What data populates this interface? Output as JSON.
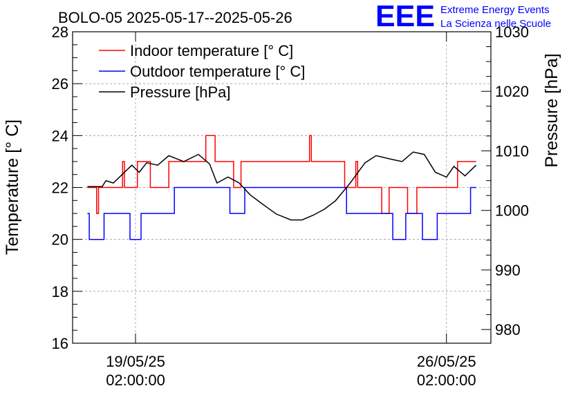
{
  "header": {
    "title": "BOLO-05 2025-05-17--2025-05-26",
    "logo_text": "EEE",
    "logo_line1": "Extreme Energy Events",
    "logo_line2": "La Scienza nelle Scuole"
  },
  "colors": {
    "indoor": "#ff0000",
    "outdoor": "#0000ff",
    "pressure": "#000000",
    "logo": "#0000ff",
    "grid": "#999999"
  },
  "chart_data": {
    "type": "line",
    "title": "BOLO-05 2025-05-17--2025-05-26",
    "ylabel": "Temperature [° C]",
    "y2label": "Pressure [hPa]",
    "ylim": [
      16,
      28
    ],
    "y2lim": [
      977.7,
      1030
    ],
    "xlim": [
      "2025-05-17T16:00:00",
      "2025-05-27T02:00:00"
    ],
    "grid": true,
    "legend_position": "top-left",
    "y_ticks": [
      16,
      18,
      20,
      22,
      24,
      26,
      28
    ],
    "y_tick_labels": [
      "16",
      "18",
      "20",
      "22",
      "24",
      "26",
      "28"
    ],
    "y2_ticks": [
      980,
      990,
      1000,
      1010,
      1020,
      1030
    ],
    "y2_tick_labels": [
      "980",
      "990",
      "1000",
      "1010",
      "1020",
      "1030"
    ],
    "x_ticks": [
      {
        "value": "2025-05-19T02:00:00",
        "date": "19/05/25",
        "time": "02:00:00"
      },
      {
        "value": "2025-05-26T02:00:00",
        "date": "26/05/25",
        "time": "02:00:00"
      }
    ],
    "series": [
      {
        "name": "Indoor temperature [° C]",
        "axis": "left",
        "points": [
          [
            "2025-05-18T00:00",
            22
          ],
          [
            "2025-05-18T04:00",
            22
          ],
          [
            "2025-05-18T05:00",
            21
          ],
          [
            "2025-05-18T06:00",
            22
          ],
          [
            "2025-05-18T18:00",
            22
          ],
          [
            "2025-05-18T19:00",
            23
          ],
          [
            "2025-05-18T20:00",
            22
          ],
          [
            "2025-05-19T02:00",
            22
          ],
          [
            "2025-05-19T03:00",
            23
          ],
          [
            "2025-05-19T09:00",
            23
          ],
          [
            "2025-05-19T10:00",
            22
          ],
          [
            "2025-05-19T19:00",
            22
          ],
          [
            "2025-05-19T20:00",
            23
          ],
          [
            "2025-05-20T15:00",
            23
          ],
          [
            "2025-05-20T16:00",
            24
          ],
          [
            "2025-05-20T20:00",
            24
          ],
          [
            "2025-05-20T21:00",
            23
          ],
          [
            "2025-05-21T06:00",
            23
          ],
          [
            "2025-05-21T07:00",
            22
          ],
          [
            "2025-05-21T10:00",
            22
          ],
          [
            "2025-05-21T11:00",
            23
          ],
          [
            "2025-05-22T23:00",
            23
          ],
          [
            "2025-05-23T00:00",
            24
          ],
          [
            "2025-05-23T01:00",
            23
          ],
          [
            "2025-05-23T18:00",
            23
          ],
          [
            "2025-05-23T19:00",
            22
          ],
          [
            "2025-05-24T00:00",
            22
          ],
          [
            "2025-05-24T01:00",
            23
          ],
          [
            "2025-05-24T02:00",
            22
          ],
          [
            "2025-05-24T14:00",
            22
          ],
          [
            "2025-05-24T15:00",
            21
          ],
          [
            "2025-05-24T18:00",
            21
          ],
          [
            "2025-05-24T19:00",
            22
          ],
          [
            "2025-05-25T04:00",
            22
          ],
          [
            "2025-05-25T05:00",
            21
          ],
          [
            "2025-05-25T09:00",
            21
          ],
          [
            "2025-05-25T10:00",
            22
          ],
          [
            "2025-05-26T07:00",
            22
          ],
          [
            "2025-05-26T08:00",
            23
          ],
          [
            "2025-05-26T18:00",
            23
          ]
        ]
      },
      {
        "name": "Outdoor temperature [° C]",
        "axis": "left",
        "points": [
          [
            "2025-05-18T00:00",
            21
          ],
          [
            "2025-05-18T01:00",
            20
          ],
          [
            "2025-05-18T08:00",
            20
          ],
          [
            "2025-05-18T09:00",
            21
          ],
          [
            "2025-05-18T22:00",
            21
          ],
          [
            "2025-05-18T23:00",
            20
          ],
          [
            "2025-05-19T04:00",
            20
          ],
          [
            "2025-05-19T05:00",
            21
          ],
          [
            "2025-05-19T22:00",
            21
          ],
          [
            "2025-05-19T23:00",
            22
          ],
          [
            "2025-05-21T04:00",
            22
          ],
          [
            "2025-05-21T05:00",
            21
          ],
          [
            "2025-05-21T12:00",
            21
          ],
          [
            "2025-05-21T13:00",
            22
          ],
          [
            "2025-05-23T19:00",
            22
          ],
          [
            "2025-05-23T20:00",
            21
          ],
          [
            "2025-05-24T20:00",
            21
          ],
          [
            "2025-05-24T21:00",
            20
          ],
          [
            "2025-05-25T03:00",
            20
          ],
          [
            "2025-05-25T04:00",
            21
          ],
          [
            "2025-05-25T12:00",
            21
          ],
          [
            "2025-05-25T13:00",
            20
          ],
          [
            "2025-05-25T20:00",
            20
          ],
          [
            "2025-05-25T21:00",
            21
          ],
          [
            "2025-05-26T14:00",
            21
          ],
          [
            "2025-05-26T15:00",
            22
          ],
          [
            "2025-05-26T18:00",
            22
          ]
        ]
      },
      {
        "name": "Pressure [hPa]",
        "axis": "right",
        "points": [
          [
            "2025-05-18T00:00",
            1004
          ],
          [
            "2025-05-18T08:00",
            1004
          ],
          [
            "2025-05-18T10:00",
            1005
          ],
          [
            "2025-05-18T14:00",
            1004.6
          ],
          [
            "2025-05-18T18:00",
            1005.8
          ],
          [
            "2025-05-19T00:00",
            1007.6
          ],
          [
            "2025-05-19T04:00",
            1006.4
          ],
          [
            "2025-05-19T08:00",
            1008
          ],
          [
            "2025-05-19T14:00",
            1007.6
          ],
          [
            "2025-05-19T20:00",
            1009.2
          ],
          [
            "2025-05-20T04:00",
            1008.2
          ],
          [
            "2025-05-20T12:00",
            1009.4
          ],
          [
            "2025-05-20T18:00",
            1007.8
          ],
          [
            "2025-05-20T22:00",
            1004.6
          ],
          [
            "2025-05-21T04:00",
            1005.6
          ],
          [
            "2025-05-21T10:00",
            1004.6
          ],
          [
            "2025-05-21T16:00",
            1002.6
          ],
          [
            "2025-05-21T22:00",
            1001.2
          ],
          [
            "2025-05-22T06:00",
            999.4
          ],
          [
            "2025-05-22T14:00",
            998.4
          ],
          [
            "2025-05-22T20:00",
            998.4
          ],
          [
            "2025-05-23T02:00",
            999.2
          ],
          [
            "2025-05-23T08:00",
            1000.2
          ],
          [
            "2025-05-23T14:00",
            1001.6
          ],
          [
            "2025-05-23T22:00",
            1004.6
          ],
          [
            "2025-05-24T06:00",
            1008
          ],
          [
            "2025-05-24T12:00",
            1009.2
          ],
          [
            "2025-05-24T20:00",
            1008.6
          ],
          [
            "2025-05-25T02:00",
            1008.2
          ],
          [
            "2025-05-25T08:00",
            1009.8
          ],
          [
            "2025-05-25T14:00",
            1009.4
          ],
          [
            "2025-05-25T20:00",
            1006.4
          ],
          [
            "2025-05-26T02:00",
            1005.6
          ],
          [
            "2025-05-26T06:00",
            1007.4
          ],
          [
            "2025-05-26T12:00",
            1005.8
          ],
          [
            "2025-05-26T18:00",
            1007.6
          ]
        ]
      }
    ]
  }
}
